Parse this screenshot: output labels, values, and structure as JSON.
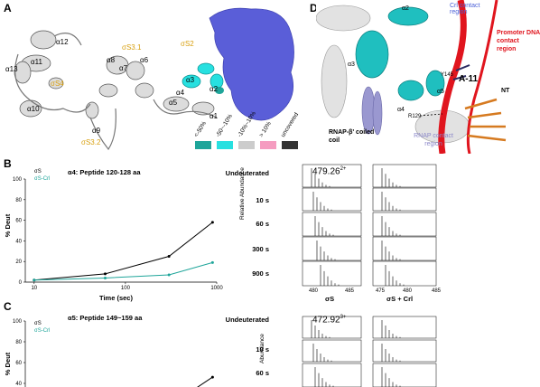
{
  "panel_a": {
    "letter": "A",
    "crl_label": "Crl",
    "labels": {
      "a12": "α12",
      "a13": "α13",
      "a11": "α11",
      "s4": "σS4",
      "a10": "α10",
      "a9": "α9",
      "s32": "σS3.2",
      "a8": "α8",
      "a7": "α7",
      "a6": "α6",
      "s31": "σS3.1",
      "s2": "σS2",
      "a2": "α2",
      "a3": "α3",
      "a4": "α4",
      "a5": "α5",
      "a1": "α1"
    },
    "legend": [
      {
        "label": "<-50%",
        "color": "#1fa59a"
      },
      {
        "label": "-50~-10%",
        "color": "#27e0e0"
      },
      {
        "label": "-10%~10%",
        "color": "#cccccc"
      },
      {
        "label": "> 10%",
        "color": "#f59cc0"
      },
      {
        "label": "uncovered",
        "color": "#333333"
      }
    ]
  },
  "panel_b": {
    "letter": "B",
    "title": "α4: Peptide 120-128 aa",
    "ylabel": "% Deut",
    "xlabel": "Time (sec)",
    "legend": {
      "sigma": "σS",
      "sigma_crl": "σS-Crl"
    },
    "conditions": [
      "Undeuterated",
      "10 s",
      "60 s",
      "300 s",
      "900 s"
    ],
    "peak_label": "479.26",
    "peak_charge": "2+",
    "ms_ylabel": "Relative Abundance",
    "ms_xticks": [
      "480",
      "485",
      "475",
      "480",
      "485"
    ],
    "ms_xlabels": [
      "σS",
      "σS + Crl"
    ]
  },
  "panel_c": {
    "letter": "C",
    "title": "α5: Peptide 149~159 aa",
    "ylabel": "% Deut",
    "legend": {
      "sigma": "σS",
      "sigma_crl": "σS-Crl"
    },
    "conditions": [
      "Undeuterated",
      "10 s",
      "60 s"
    ],
    "peak_label": "472.92",
    "peak_charge": "3+",
    "ms_ylabel": "Abundance"
  },
  "panel_d": {
    "letter": "D",
    "labels": {
      "a2": "α2",
      "a3": "α3",
      "a4": "α4",
      "a5": "α5",
      "crl_contact": "Crl contact region",
      "promoter": "Promoter DNA contact region",
      "a11": "A-11",
      "nt": "NT",
      "r129": "R129",
      "y145": "Y145",
      "rnap_beta": "RNAP-β' coiled coil",
      "rnap_contact": "RNAP contact region"
    }
  },
  "chart_data": [
    {
      "type": "line",
      "title": "α4: Peptide 120-128 aa",
      "xlabel": "Time (sec)",
      "ylabel": "% Deut",
      "xscale": "log",
      "xlim": [
        8,
        1000
      ],
      "ylim": [
        0,
        100
      ],
      "xticks": [
        10,
        100,
        1000
      ],
      "yticks": [
        0,
        20,
        40,
        60,
        80,
        100
      ],
      "x": [
        10,
        60,
        300,
        900
      ],
      "series": [
        {
          "name": "σS",
          "color": "#000000",
          "values": [
            2,
            8,
            25,
            58
          ]
        },
        {
          "name": "σS-Crl",
          "color": "#1fa59a",
          "values": [
            2,
            4,
            7,
            19
          ]
        }
      ]
    },
    {
      "type": "line",
      "title": "α5: Peptide 149~159 aa",
      "ylabel": "% Deut",
      "xscale": "log",
      "yticks": [
        40,
        60,
        80,
        100
      ],
      "x": [
        900
      ],
      "series": [
        {
          "name": "σS",
          "color": "#000000",
          "values": [
            46
          ]
        }
      ]
    }
  ]
}
